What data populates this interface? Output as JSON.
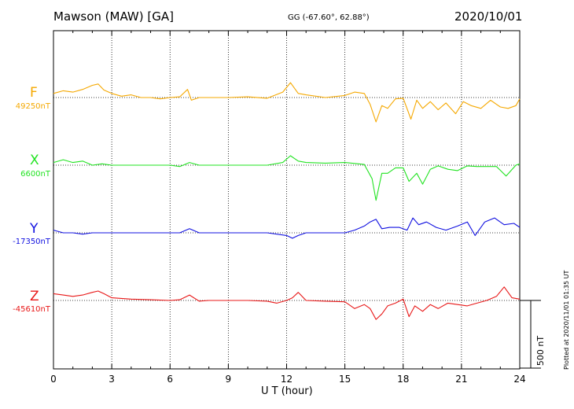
{
  "header": {
    "station": "Mawson (MAW)  [GA]",
    "coords": "GG (-67.60°,  62.88°)",
    "date": "2020/10/01"
  },
  "plotted_note": "Plotted at 2020/11/01 01:35 UT",
  "chart_data": {
    "type": "line",
    "xlabel": "U T (hour)",
    "xlim": [
      0,
      24
    ],
    "xticks": [
      0,
      3,
      6,
      9,
      12,
      15,
      18,
      21,
      24
    ],
    "scale_bar": {
      "label": "500 nT",
      "value": 500,
      "unit": "nT"
    },
    "grid": "dotted vertical every 3 hours, dotted baseline per trace",
    "series": [
      {
        "name": "F",
        "baseline_label": "49250nT",
        "baseline": 49250,
        "color": "#f5a800",
        "x": [
          0,
          0.5,
          1,
          1.5,
          2,
          2.3,
          2.6,
          3,
          3.5,
          4,
          4.5,
          5,
          5.5,
          6,
          6.5,
          6.9,
          7.1,
          7.5,
          8,
          9,
          10,
          11,
          11.8,
          12.2,
          12.6,
          13,
          14,
          15,
          15.5,
          16,
          16.3,
          16.6,
          16.9,
          17.2,
          17.6,
          18,
          18.4,
          18.7,
          19,
          19.4,
          19.8,
          20.2,
          20.7,
          21.1,
          21.5,
          22,
          22.5,
          23,
          23.4,
          23.8,
          24
        ],
        "y": [
          -30,
          -50,
          -40,
          -60,
          -90,
          -100,
          -55,
          -30,
          -10,
          -20,
          0,
          0,
          10,
          0,
          -5,
          -60,
          20,
          0,
          0,
          0,
          -5,
          5,
          -40,
          -110,
          -30,
          -20,
          0,
          -15,
          -40,
          -30,
          50,
          180,
          60,
          80,
          10,
          5,
          160,
          20,
          80,
          30,
          90,
          40,
          120,
          30,
          60,
          80,
          20,
          70,
          80,
          60,
          10
        ]
      },
      {
        "name": "X",
        "baseline_label": "6600nT",
        "baseline": 6600,
        "color": "#22e322",
        "x": [
          0,
          0.5,
          1,
          1.5,
          2,
          2.5,
          3,
          4,
          5,
          6,
          6.5,
          7,
          7.5,
          8,
          9,
          10,
          11,
          11.8,
          12.2,
          12.6,
          13,
          14,
          15,
          16,
          16.4,
          16.6,
          16.9,
          17.2,
          17.6,
          18,
          18.3,
          18.7,
          19,
          19.4,
          19.8,
          20.3,
          20.8,
          21.3,
          21.8,
          22.3,
          22.8,
          23.3,
          23.8,
          24
        ],
        "y": [
          -20,
          -40,
          -20,
          -30,
          0,
          -10,
          0,
          0,
          0,
          0,
          10,
          -20,
          0,
          0,
          0,
          0,
          0,
          -20,
          -70,
          -30,
          -20,
          -15,
          -20,
          -5,
          100,
          260,
          60,
          60,
          20,
          20,
          120,
          60,
          140,
          30,
          5,
          30,
          40,
          5,
          10,
          10,
          10,
          80,
          0,
          -10
        ]
      },
      {
        "name": "Y",
        "baseline_label": "-17350nT",
        "baseline": -17350,
        "color": "#1010e0",
        "x": [
          0,
          0.5,
          1,
          1.5,
          2,
          3,
          4,
          5,
          6,
          6.5,
          7,
          7.5,
          8,
          9,
          10,
          11,
          12,
          12.3,
          12.6,
          13,
          14,
          15,
          15.5,
          16,
          16.3,
          16.6,
          16.9,
          17.3,
          17.8,
          18.2,
          18.5,
          18.8,
          19.2,
          19.7,
          20.2,
          20.8,
          21.3,
          21.7,
          22.2,
          22.7,
          23.2,
          23.7,
          24
        ],
        "y": [
          -20,
          0,
          0,
          10,
          0,
          0,
          0,
          0,
          0,
          0,
          -30,
          0,
          0,
          0,
          0,
          0,
          20,
          40,
          20,
          0,
          0,
          0,
          -20,
          -50,
          -80,
          -100,
          -30,
          -40,
          -40,
          -20,
          -110,
          -60,
          -80,
          -40,
          -20,
          -50,
          -80,
          20,
          -80,
          -110,
          -60,
          -70,
          -40
        ]
      },
      {
        "name": "Z",
        "baseline_label": "-45610nT",
        "baseline": -45610,
        "color": "#e81818",
        "x": [
          0,
          0.5,
          1,
          1.5,
          2,
          2.3,
          2.6,
          3,
          4,
          5,
          6,
          6.5,
          7,
          7.5,
          8,
          9,
          10,
          11,
          11.5,
          12,
          12.3,
          12.6,
          13,
          14,
          15,
          15.5,
          16,
          16.3,
          16.6,
          16.9,
          17.2,
          17.6,
          18,
          18.3,
          18.6,
          19,
          19.4,
          19.8,
          20.3,
          20.8,
          21.3,
          21.8,
          22.3,
          22.8,
          23.2,
          23.6,
          24
        ],
        "y": [
          -50,
          -40,
          -30,
          -40,
          -60,
          -70,
          -50,
          -20,
          -10,
          -5,
          0,
          -5,
          -40,
          5,
          0,
          0,
          0,
          5,
          20,
          0,
          -20,
          -60,
          0,
          5,
          10,
          60,
          30,
          60,
          140,
          100,
          40,
          20,
          -10,
          120,
          40,
          80,
          30,
          60,
          20,
          30,
          40,
          20,
          0,
          -30,
          -100,
          -20,
          -10
        ]
      }
    ]
  }
}
